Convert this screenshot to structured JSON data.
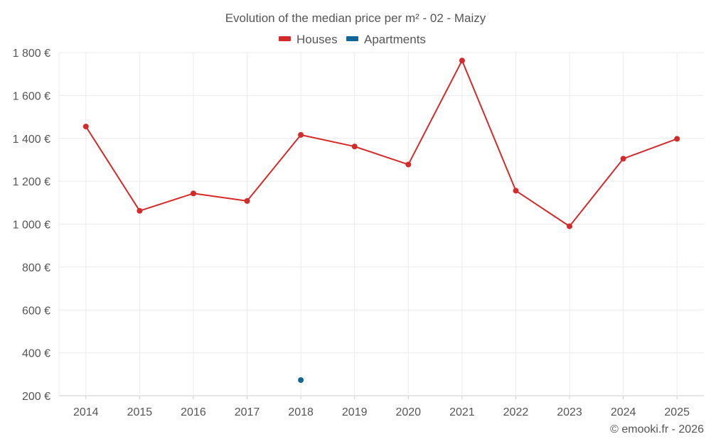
{
  "chart_data": {
    "type": "line",
    "title": "Evolution of the median price per m² - 02 - Maizy",
    "categories": [
      "2014",
      "2015",
      "2016",
      "2017",
      "2018",
      "2019",
      "2020",
      "2021",
      "2022",
      "2023",
      "2024",
      "2025"
    ],
    "series": [
      {
        "name": "Houses",
        "color": "#d42a2a",
        "values": [
          1455,
          1062,
          1143,
          1108,
          1416,
          1362,
          1278,
          1763,
          1156,
          990,
          1305,
          1398
        ]
      },
      {
        "name": "Apartments",
        "color": "#116699",
        "values": [
          null,
          null,
          null,
          null,
          273,
          null,
          null,
          null,
          null,
          null,
          null,
          null
        ]
      }
    ],
    "yticks": [
      200,
      400,
      600,
      800,
      1000,
      1200,
      1400,
      1600,
      1800
    ],
    "ytick_labels": [
      "200 €",
      "400 €",
      "600 €",
      "800 €",
      "1 000 €",
      "1 200 €",
      "1 400 €",
      "1 600 €",
      "1 800 €"
    ],
    "ylim": [
      200,
      1800
    ],
    "grid": true,
    "legend_position": "top-center",
    "xlabel": "",
    "ylabel": ""
  },
  "footer": "© emooki.fr - 2026"
}
